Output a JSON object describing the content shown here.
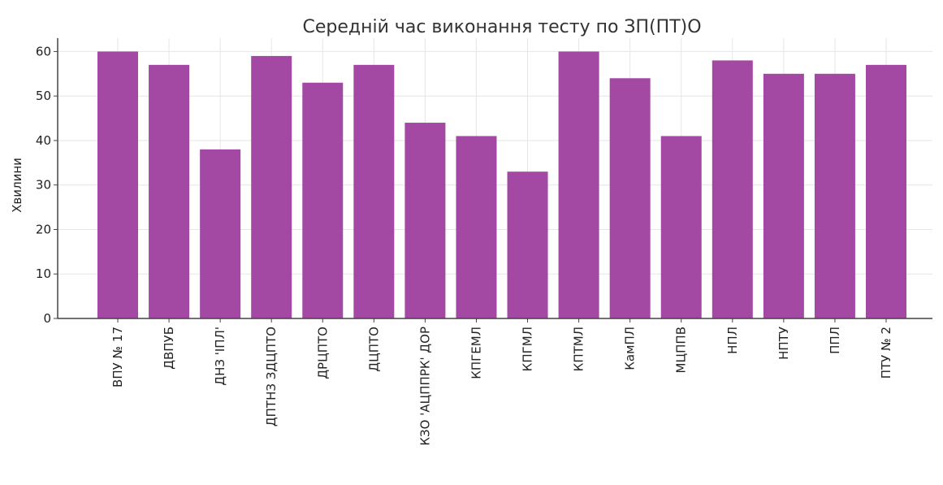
{
  "chart_data": {
    "type": "bar",
    "title": "Середній час виконання тесту по ЗП(ПТ)О",
    "xlabel": "",
    "ylabel": "Хвилини",
    "ylim": [
      0,
      63
    ],
    "yticks": [
      0,
      10,
      20,
      30,
      40,
      50,
      60
    ],
    "grid": true,
    "bar_color": "#a349a4",
    "categories": [
      "ВПУ № 17",
      "ДВПУБ",
      "ДНЗ 'ІПЛ'",
      "ДПТНЗ ЗДЦПТО",
      "ДРЦПТО",
      "ДЦПТО",
      "КЗО 'АЦППРК' ДОР",
      "КПГЕМЛ",
      "КПГМЛ",
      "КПТМЛ",
      "КамПЛ",
      "МЦППВ",
      "НПЛ",
      "НПТУ",
      "ППЛ",
      "ПТУ № 2"
    ],
    "values": [
      60,
      57,
      38,
      59,
      53,
      57,
      44,
      41,
      33,
      60,
      54,
      41,
      58,
      55,
      55,
      57
    ]
  }
}
